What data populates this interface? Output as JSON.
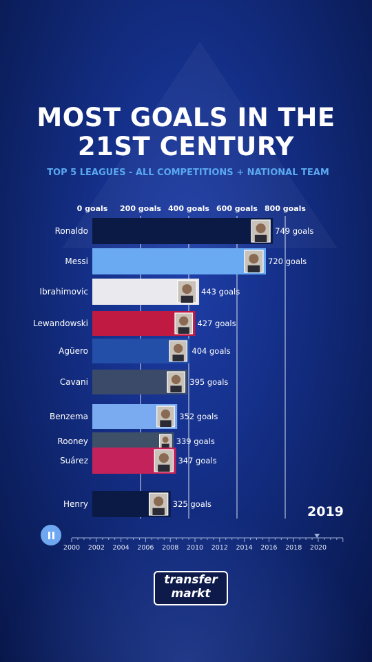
{
  "title_line1": "MOST GOALS IN THE",
  "title_line2": "21ST CENTURY",
  "subtitle": "TOP 5 LEAGUES - ALL COMPETITIONS + NATIONAL TEAM",
  "current_year": "2019",
  "logo": {
    "line1": "transfer",
    "line2": "markt"
  },
  "chart_data": {
    "type": "bar",
    "orientation": "horizontal",
    "title": "MOST GOALS IN THE 21ST CENTURY",
    "subtitle": "TOP 5 LEAGUES - ALL COMPETITIONS + NATIONAL TEAM",
    "x_ticks": [
      0,
      200,
      400,
      600,
      800
    ],
    "x_tick_labels": [
      "0 goals",
      "200 goals",
      "400 goals",
      "600 goals",
      "800 goals"
    ],
    "xlim": [
      0,
      800
    ],
    "grid": true,
    "bars": [
      {
        "name": "Ronaldo",
        "value": 749,
        "label": "749 goals",
        "color": "#0b1a45"
      },
      {
        "name": "Messi",
        "value": 720,
        "label": "720 goals",
        "color": "#6aaaf2"
      },
      {
        "name": "Ibrahimovic",
        "value": 443,
        "label": "443 goals",
        "color": "#e9e9ee"
      },
      {
        "name": "Lewandowski",
        "value": 427,
        "label": "427 goals",
        "color": "#c01a42"
      },
      {
        "name": "Agüero",
        "value": 404,
        "label": "404 goals",
        "color": "#234fa8"
      },
      {
        "name": "Cavani",
        "value": 395,
        "label": "395 goals",
        "color": "#3a4a68"
      },
      {
        "name": "Benzema",
        "value": 352,
        "label": "352 goals",
        "color": "#7aaaf0"
      },
      {
        "name": "Rooney",
        "value": 339,
        "label": "339 goals",
        "color": "#3d5068"
      },
      {
        "name": "Suárez",
        "value": 347,
        "label": "347 goals",
        "color": "#c4225a"
      },
      {
        "name": "Henry",
        "value": 325,
        "label": "325 goals",
        "color": "#0a1a45"
      }
    ],
    "timeline": {
      "ticks": [
        "2000",
        "2002",
        "2004",
        "2006",
        "2008",
        "2010",
        "2012",
        "2014",
        "2016",
        "2018",
        "2020"
      ],
      "min": 2000,
      "max": 2020,
      "marker_value": 2019.9
    }
  }
}
